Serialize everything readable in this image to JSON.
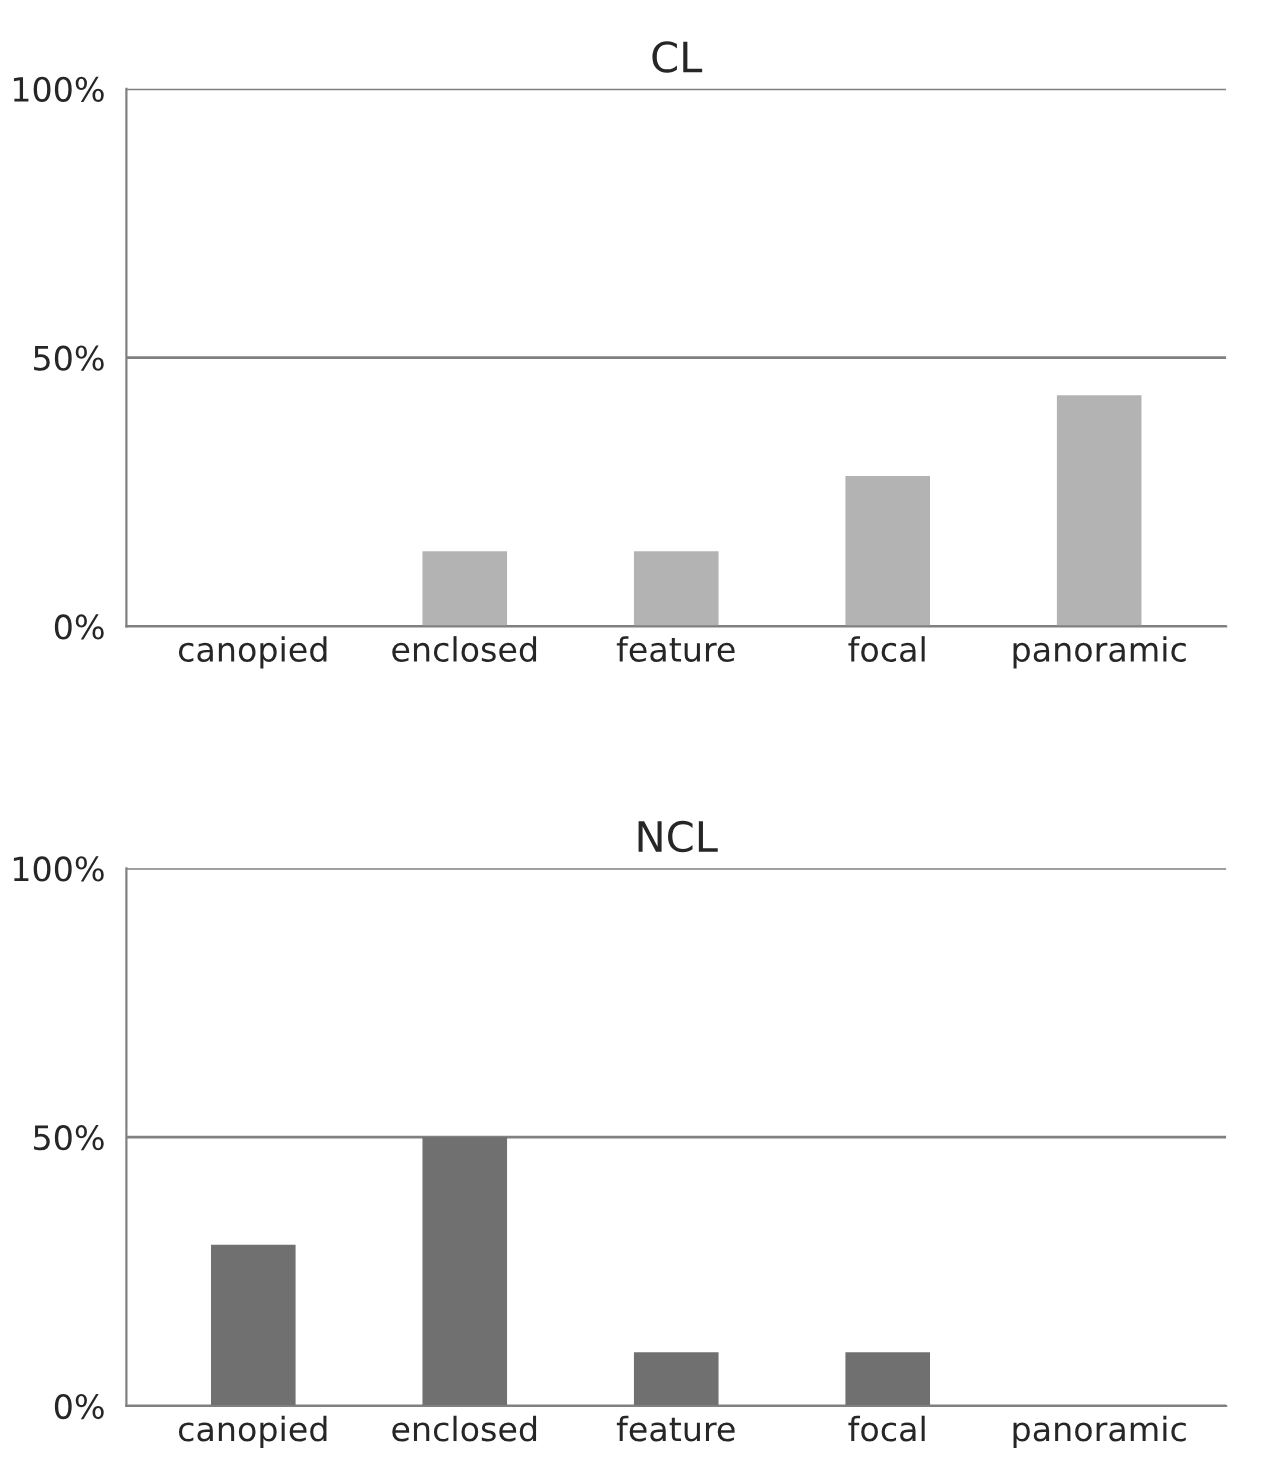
{
  "chart_data": [
    {
      "type": "bar",
      "title": "CL",
      "categories": [
        "canopied",
        "enclosed",
        "feature",
        "focal",
        "panoramic"
      ],
      "values": [
        0,
        14,
        14,
        28,
        43
      ],
      "color": "#b3b3b3",
      "ylim": [
        0,
        100
      ],
      "yticks": [
        {
          "value": 0,
          "label": "0%"
        },
        {
          "value": 50,
          "label": "50%"
        },
        {
          "value": 100,
          "label": "100%"
        }
      ],
      "grid": "y"
    },
    {
      "type": "bar",
      "title": "NCL",
      "categories": [
        "canopied",
        "enclosed",
        "feature",
        "focal",
        "panoramic"
      ],
      "values": [
        30,
        50,
        10,
        10,
        0
      ],
      "color": "#707070",
      "ylim": [
        0,
        100
      ],
      "yticks": [
        {
          "value": 0,
          "label": "0%"
        },
        {
          "value": 50,
          "label": "50%"
        },
        {
          "value": 100,
          "label": "100%"
        }
      ],
      "grid": "y"
    }
  ]
}
